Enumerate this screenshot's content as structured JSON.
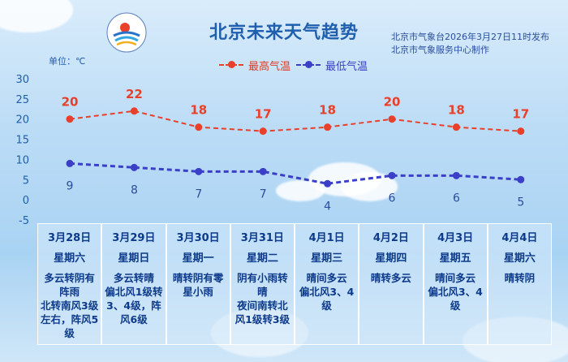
{
  "header": {
    "title": "北京未来天气趋势",
    "issuer_line1": "北京市气象台2026年3月27日11时发布",
    "issuer_line2": "北京市气象服务中心制作",
    "unit_label": "单位：℃"
  },
  "colors": {
    "high": "#e8402a",
    "low": "#3b3fc8",
    "axis_text": "#1f5fae",
    "table_text": "#0d3a8a"
  },
  "chart_data": {
    "type": "line",
    "categories": [
      "3月28日",
      "3月29日",
      "3月30日",
      "3月31日",
      "4月1日",
      "4月2日",
      "4月3日",
      "4月4日"
    ],
    "series": [
      {
        "name": "最高气温",
        "values": [
          20,
          22,
          18,
          17,
          18,
          20,
          18,
          17
        ]
      },
      {
        "name": "最低气温",
        "values": [
          9,
          8,
          7,
          7,
          4,
          6,
          6,
          5
        ]
      }
    ],
    "ylim": [
      -5,
      30
    ],
    "yticks": [
      -5,
      0,
      5,
      10,
      15,
      20,
      25,
      30
    ],
    "ylabel": "单位：℃",
    "grid": false,
    "legend": "top-center"
  },
  "forecast": [
    {
      "date": "3月28日",
      "weekday": "星期六",
      "weather": "多云转阴有阵雨",
      "wind": "北转南风3级左右，阵风5级"
    },
    {
      "date": "3月29日",
      "weekday": "星期日",
      "weather": "多云转晴",
      "wind": "偏北风1级转3、4级，阵风6级"
    },
    {
      "date": "3月30日",
      "weekday": "星期一",
      "weather": "晴转阴有零星小雨",
      "wind": ""
    },
    {
      "date": "3月31日",
      "weekday": "星期二",
      "weather": "阴有小雨转晴",
      "wind": "夜间南转北风1级转3级"
    },
    {
      "date": "4月1日",
      "weekday": "星期三",
      "weather": "晴间多云",
      "wind": "偏北风3、4级"
    },
    {
      "date": "4月2日",
      "weekday": "星期四",
      "weather": "晴转多云",
      "wind": ""
    },
    {
      "date": "4月3日",
      "weekday": "星期五",
      "weather": "晴间多云",
      "wind": "偏北风3、4级"
    },
    {
      "date": "4月4日",
      "weekday": "星期六",
      "weather": "晴转阴",
      "wind": ""
    }
  ]
}
